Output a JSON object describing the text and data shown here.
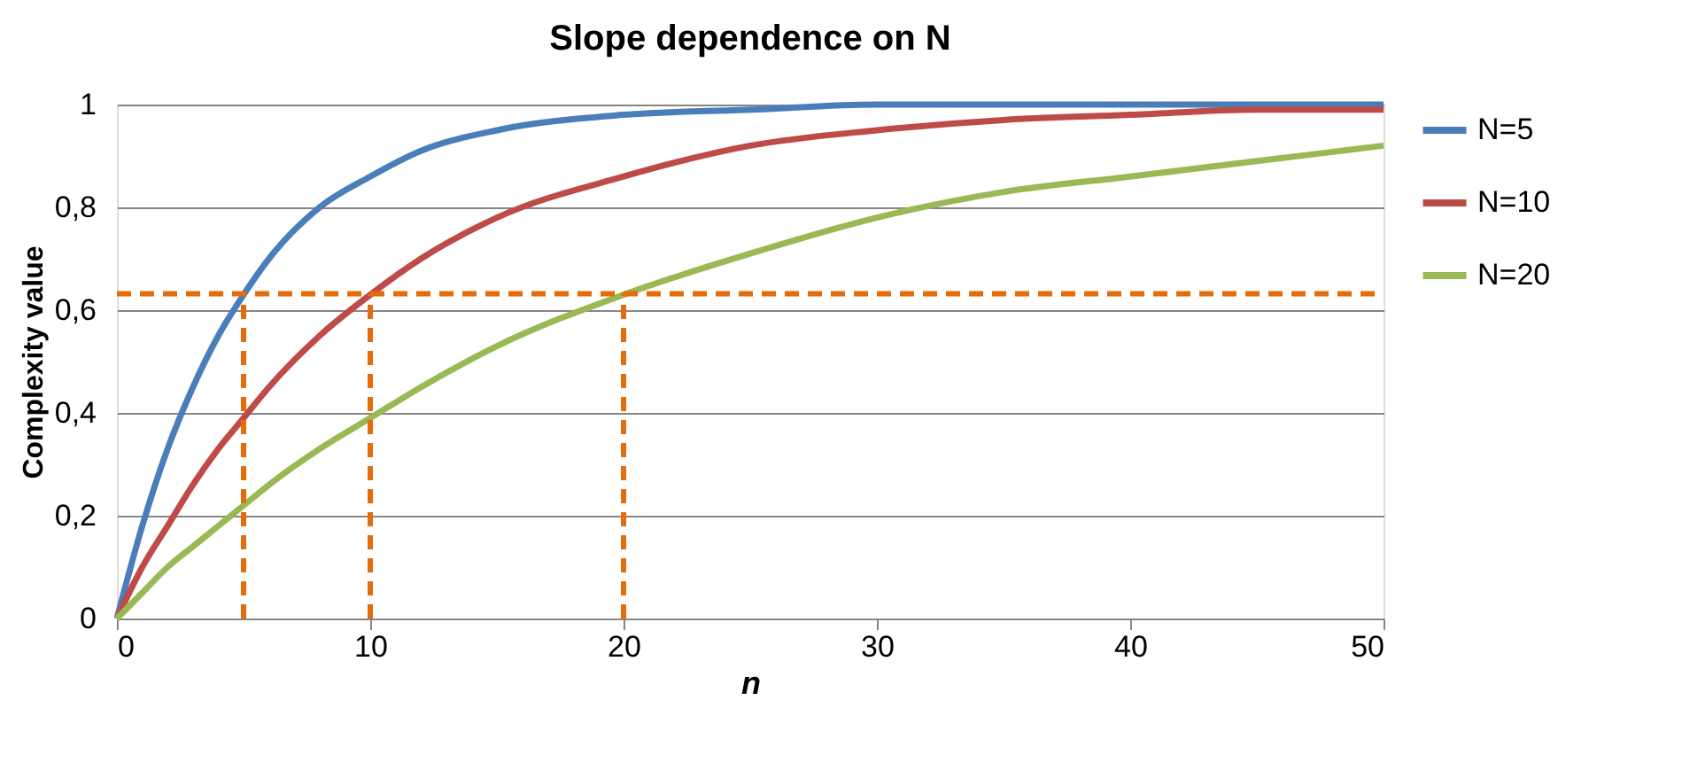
{
  "chart_data": {
    "type": "line",
    "title": "Slope dependence on N",
    "xlabel": "n",
    "ylabel": "Complexity value",
    "x": [
      0,
      1,
      2,
      3,
      4,
      5,
      6,
      8,
      10,
      12,
      15,
      20,
      25,
      30,
      35,
      40,
      45,
      50
    ],
    "series": [
      {
        "name": "N=5",
        "color": "#4a7ebb",
        "values": [
          0,
          0.18,
          0.33,
          0.45,
          0.55,
          0.63,
          0.7,
          0.8,
          0.86,
          0.91,
          0.95,
          0.98,
          0.99,
          1.0,
          1.0,
          1.0,
          1.0,
          1.0
        ]
      },
      {
        "name": "N=10",
        "color": "#be4b48",
        "values": [
          0,
          0.1,
          0.18,
          0.26,
          0.33,
          0.39,
          0.45,
          0.55,
          0.63,
          0.7,
          0.78,
          0.86,
          0.92,
          0.95,
          0.97,
          0.98,
          0.99,
          0.99
        ]
      },
      {
        "name": "N=20",
        "color": "#98b954",
        "values": [
          0,
          0.05,
          0.1,
          0.14,
          0.18,
          0.22,
          0.26,
          0.33,
          0.39,
          0.45,
          0.53,
          0.63,
          0.71,
          0.78,
          0.83,
          0.86,
          0.89,
          0.92
        ]
      },
      {
        "color": "#e46c0a",
        "line_style": "dashed",
        "x": [
          0,
          50
        ],
        "values": [
          0.632,
          0.632
        ]
      },
      {
        "color": "#e46c0a",
        "line_style": "dashed",
        "x": [
          5,
          5
        ],
        "values": [
          0,
          0.632
        ]
      },
      {
        "color": "#e46c0a",
        "line_style": "dashed",
        "x": [
          10,
          10
        ],
        "values": [
          0,
          0.632
        ]
      },
      {
        "color": "#e46c0a",
        "line_style": "dashed",
        "x": [
          20,
          20
        ],
        "values": [
          0,
          0.632
        ]
      }
    ],
    "xlim": [
      0,
      50
    ],
    "xticks": [
      0,
      10,
      20,
      30,
      40,
      50
    ],
    "ylim": [
      0,
      1
    ],
    "yticks": [
      0,
      {
        "value": 0.2,
        "label": "0,2"
      },
      {
        "value": 0.4,
        "label": "0,4"
      },
      {
        "value": 0.6,
        "label": "0,6"
      },
      {
        "value": 0.8,
        "label": "0,8"
      },
      1
    ],
    "grid": "y",
    "legend": "right",
    "marker": "none",
    "line_style": "solid"
  }
}
